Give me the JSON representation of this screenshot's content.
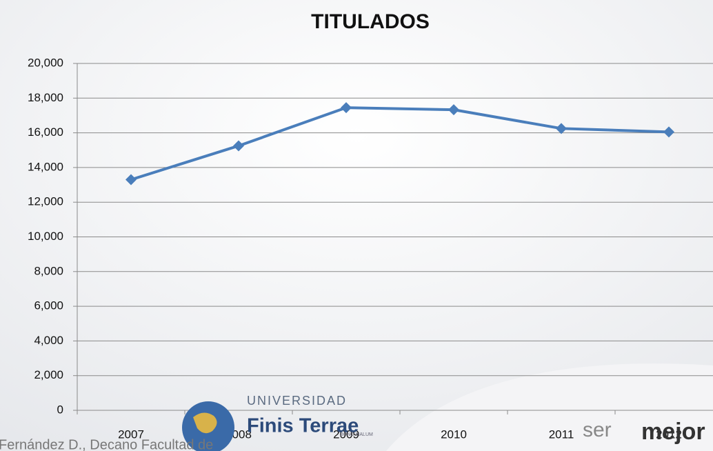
{
  "chart_data": {
    "type": "line",
    "title": "TITULADOS",
    "categories": [
      "2007",
      "2008",
      "2009",
      "2010",
      "2011",
      "2012"
    ],
    "series": [
      {
        "name": "Titulados",
        "color": "#4a7ebb",
        "values": [
          13300,
          15250,
          17450,
          17330,
          16250,
          16050
        ]
      }
    ],
    "ylim": [
      0,
      20000
    ],
    "yticks": [
      0,
      {
        "value": 2000,
        "label": "2,000"
      },
      {
        "value": 4000,
        "label": "4,000"
      },
      {
        "value": 6000,
        "label": "6,000"
      },
      {
        "value": 8000,
        "label": "8,000"
      },
      {
        "value": 10000,
        "label": "10,000"
      },
      {
        "value": 12000,
        "label": "12,000"
      },
      {
        "value": 14000,
        "label": "14,000"
      },
      {
        "value": 16000,
        "label": "16,000"
      },
      {
        "value": 18000,
        "label": "18,000"
      },
      {
        "value": 20000,
        "label": "20,000"
      }
    ],
    "grid": true,
    "legend": false
  },
  "footer": {
    "author": "Fernández D., Decano Facultad de",
    "university": "UNIVERSIDAD",
    "brand": "Finis Terrae",
    "motto": "BONO MALUM",
    "slogan_left": "ser",
    "slogan_right": "mejor"
  }
}
